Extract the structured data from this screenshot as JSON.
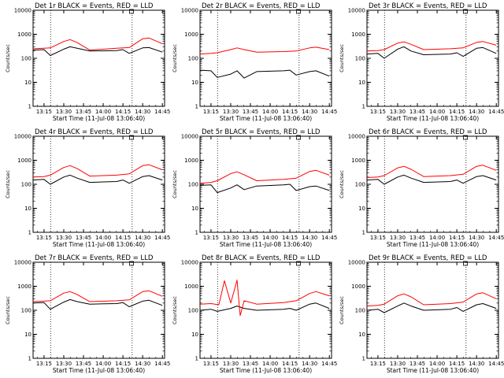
{
  "chart_data": {
    "type": "line",
    "layout": "3x3 grid",
    "ylabel": "Counts/sec",
    "xlabel": "Start Time (11-Jul-08 13:06:40)",
    "y_scale": "log",
    "ylim": [
      1,
      10000
    ],
    "y_ticks": [
      "1",
      "10",
      "100",
      "1000",
      "10000"
    ],
    "x_ticks": [
      "13:15",
      "13:30",
      "13:45",
      "14:00",
      "14:15",
      "14:30",
      "14:45"
    ],
    "xlim": [
      "13:06:40",
      "14:46:40"
    ],
    "dotted_lines_x": [
      "13:20",
      "14:22"
    ],
    "colors": {
      "events": "#000000",
      "lld": "#ff0000"
    },
    "panels": [
      {
        "title": "Det 1r BLACK = Events, RED = LLD",
        "events": [
          [
            13.11,
            220
          ],
          [
            13.25,
            230
          ],
          [
            13.33,
            130
          ],
          [
            13.5,
            240
          ],
          [
            13.58,
            300
          ],
          [
            13.67,
            260
          ],
          [
            13.83,
            200
          ],
          [
            14.17,
            210
          ],
          [
            14.25,
            230
          ],
          [
            14.33,
            160
          ],
          [
            14.5,
            270
          ],
          [
            14.58,
            280
          ],
          [
            14.75,
            180
          ]
        ],
        "lld": [
          [
            13.11,
            250
          ],
          [
            13.25,
            260
          ],
          [
            13.33,
            270
          ],
          [
            13.5,
            500
          ],
          [
            13.58,
            600
          ],
          [
            13.67,
            450
          ],
          [
            13.83,
            220
          ],
          [
            14.17,
            260
          ],
          [
            14.33,
            280
          ],
          [
            14.5,
            650
          ],
          [
            14.58,
            700
          ],
          [
            14.75,
            400
          ]
        ]
      },
      {
        "title": "Det 2r BLACK = Events, RED = LLD",
        "events": [
          [
            13.11,
            32
          ],
          [
            13.25,
            30
          ],
          [
            13.33,
            16
          ],
          [
            13.5,
            22
          ],
          [
            13.58,
            30
          ],
          [
            13.67,
            15
          ],
          [
            13.83,
            28
          ],
          [
            14.17,
            30
          ],
          [
            14.25,
            32
          ],
          [
            14.33,
            20
          ],
          [
            14.5,
            28
          ],
          [
            14.58,
            30
          ],
          [
            14.75,
            18
          ]
        ],
        "lld": [
          [
            13.11,
            150
          ],
          [
            13.25,
            160
          ],
          [
            13.33,
            170
          ],
          [
            13.5,
            230
          ],
          [
            13.58,
            270
          ],
          [
            13.67,
            230
          ],
          [
            13.83,
            180
          ],
          [
            14.17,
            190
          ],
          [
            14.33,
            200
          ],
          [
            14.5,
            270
          ],
          [
            14.58,
            290
          ],
          [
            14.75,
            230
          ]
        ]
      },
      {
        "title": "Det 3r BLACK = Events, RED = LLD",
        "events": [
          [
            13.11,
            150
          ],
          [
            13.25,
            160
          ],
          [
            13.33,
            100
          ],
          [
            13.5,
            240
          ],
          [
            13.58,
            300
          ],
          [
            13.67,
            200
          ],
          [
            13.83,
            140
          ],
          [
            14.17,
            150
          ],
          [
            14.25,
            170
          ],
          [
            14.33,
            120
          ],
          [
            14.5,
            260
          ],
          [
            14.58,
            280
          ],
          [
            14.75,
            160
          ]
        ],
        "lld": [
          [
            13.11,
            200
          ],
          [
            13.25,
            210
          ],
          [
            13.33,
            230
          ],
          [
            13.5,
            430
          ],
          [
            13.58,
            480
          ],
          [
            13.67,
            380
          ],
          [
            13.83,
            230
          ],
          [
            14.17,
            250
          ],
          [
            14.33,
            270
          ],
          [
            14.5,
            460
          ],
          [
            14.58,
            500
          ],
          [
            14.75,
            350
          ]
        ]
      },
      {
        "title": "Det 4r BLACK = Events, RED = LLD",
        "events": [
          [
            13.11,
            150
          ],
          [
            13.25,
            160
          ],
          [
            13.33,
            100
          ],
          [
            13.5,
            200
          ],
          [
            13.58,
            240
          ],
          [
            13.67,
            180
          ],
          [
            13.83,
            120
          ],
          [
            14.17,
            130
          ],
          [
            14.25,
            150
          ],
          [
            14.33,
            110
          ],
          [
            14.5,
            210
          ],
          [
            14.58,
            230
          ],
          [
            14.75,
            150
          ]
        ],
        "lld": [
          [
            13.11,
            200
          ],
          [
            13.25,
            210
          ],
          [
            13.33,
            240
          ],
          [
            13.5,
            500
          ],
          [
            13.58,
            600
          ],
          [
            13.67,
            450
          ],
          [
            13.83,
            220
          ],
          [
            14.17,
            240
          ],
          [
            14.33,
            270
          ],
          [
            14.5,
            600
          ],
          [
            14.58,
            650
          ],
          [
            14.75,
            400
          ]
        ]
      },
      {
        "title": "Det 5r BLACK = Events, RED = LLD",
        "events": [
          [
            13.11,
            90
          ],
          [
            13.25,
            95
          ],
          [
            13.33,
            45
          ],
          [
            13.5,
            70
          ],
          [
            13.58,
            95
          ],
          [
            13.67,
            60
          ],
          [
            13.83,
            85
          ],
          [
            14.17,
            95
          ],
          [
            14.25,
            100
          ],
          [
            14.33,
            55
          ],
          [
            14.5,
            80
          ],
          [
            14.58,
            85
          ],
          [
            14.75,
            55
          ]
        ],
        "lld": [
          [
            13.11,
            110
          ],
          [
            13.25,
            120
          ],
          [
            13.33,
            140
          ],
          [
            13.5,
            280
          ],
          [
            13.58,
            330
          ],
          [
            13.67,
            250
          ],
          [
            13.83,
            140
          ],
          [
            14.17,
            160
          ],
          [
            14.33,
            180
          ],
          [
            14.5,
            340
          ],
          [
            14.58,
            380
          ],
          [
            14.75,
            240
          ]
        ]
      },
      {
        "title": "Det 6r BLACK = Events, RED = LLD",
        "events": [
          [
            13.11,
            150
          ],
          [
            13.25,
            160
          ],
          [
            13.33,
            100
          ],
          [
            13.5,
            200
          ],
          [
            13.58,
            240
          ],
          [
            13.67,
            180
          ],
          [
            13.83,
            120
          ],
          [
            14.17,
            130
          ],
          [
            14.25,
            150
          ],
          [
            14.33,
            110
          ],
          [
            14.5,
            210
          ],
          [
            14.58,
            230
          ],
          [
            14.75,
            150
          ]
        ],
        "lld": [
          [
            13.11,
            190
          ],
          [
            13.25,
            200
          ],
          [
            13.33,
            230
          ],
          [
            13.5,
            480
          ],
          [
            13.58,
            560
          ],
          [
            13.67,
            420
          ],
          [
            13.83,
            210
          ],
          [
            14.17,
            230
          ],
          [
            14.33,
            260
          ],
          [
            14.5,
            560
          ],
          [
            14.58,
            620
          ],
          [
            14.75,
            380
          ]
        ]
      },
      {
        "title": "Det 7r BLACK = Events, RED = LLD",
        "events": [
          [
            13.11,
            200
          ],
          [
            13.25,
            210
          ],
          [
            13.33,
            110
          ],
          [
            13.5,
            220
          ],
          [
            13.58,
            280
          ],
          [
            13.67,
            230
          ],
          [
            13.83,
            180
          ],
          [
            14.17,
            190
          ],
          [
            14.25,
            210
          ],
          [
            14.33,
            140
          ],
          [
            14.5,
            240
          ],
          [
            14.58,
            260
          ],
          [
            14.75,
            160
          ]
        ],
        "lld": [
          [
            13.11,
            230
          ],
          [
            13.25,
            240
          ],
          [
            13.33,
            250
          ],
          [
            13.5,
            520
          ],
          [
            13.58,
            600
          ],
          [
            13.67,
            450
          ],
          [
            13.83,
            230
          ],
          [
            14.17,
            250
          ],
          [
            14.33,
            270
          ],
          [
            14.5,
            600
          ],
          [
            14.58,
            650
          ],
          [
            14.75,
            380
          ]
        ]
      },
      {
        "title": "Det 8r BLACK = Events, RED = LLD",
        "events": [
          [
            13.11,
            100
          ],
          [
            13.25,
            110
          ],
          [
            13.33,
            90
          ],
          [
            13.5,
            120
          ],
          [
            13.58,
            150
          ],
          [
            13.67,
            120
          ],
          [
            13.83,
            100
          ],
          [
            14.17,
            110
          ],
          [
            14.25,
            120
          ],
          [
            14.33,
            100
          ],
          [
            14.5,
            180
          ],
          [
            14.58,
            200
          ],
          [
            14.75,
            120
          ]
        ],
        "lld": [
          [
            13.11,
            180
          ],
          [
            13.25,
            190
          ],
          [
            13.35,
            170
          ],
          [
            13.42,
            1700
          ],
          [
            13.5,
            200
          ],
          [
            13.58,
            1800
          ],
          [
            13.62,
            60
          ],
          [
            13.67,
            250
          ],
          [
            13.83,
            180
          ],
          [
            14.17,
            210
          ],
          [
            14.33,
            250
          ],
          [
            14.5,
            500
          ],
          [
            14.58,
            600
          ],
          [
            14.75,
            400
          ]
        ]
      },
      {
        "title": "Det 9r BLACK = Events, RED = LLD",
        "events": [
          [
            13.11,
            100
          ],
          [
            13.25,
            110
          ],
          [
            13.33,
            80
          ],
          [
            13.5,
            150
          ],
          [
            13.58,
            200
          ],
          [
            13.67,
            150
          ],
          [
            13.83,
            100
          ],
          [
            14.17,
            110
          ],
          [
            14.25,
            130
          ],
          [
            14.33,
            90
          ],
          [
            14.5,
            170
          ],
          [
            14.58,
            190
          ],
          [
            14.75,
            120
          ]
        ],
        "lld": [
          [
            13.11,
            150
          ],
          [
            13.25,
            160
          ],
          [
            13.33,
            180
          ],
          [
            13.5,
            400
          ],
          [
            13.58,
            480
          ],
          [
            13.67,
            360
          ],
          [
            13.83,
            170
          ],
          [
            14.17,
            190
          ],
          [
            14.33,
            220
          ],
          [
            14.5,
            480
          ],
          [
            14.58,
            540
          ],
          [
            14.75,
            300
          ]
        ]
      }
    ]
  }
}
